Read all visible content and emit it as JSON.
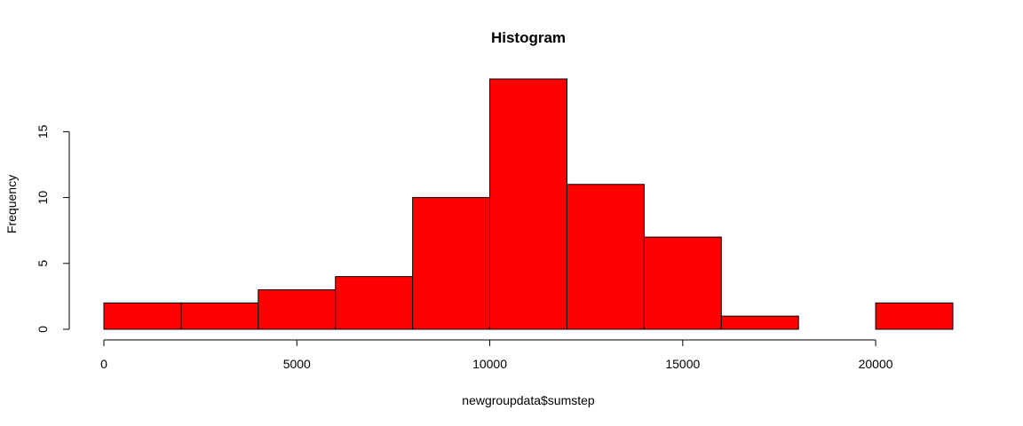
{
  "chart_data": {
    "type": "bar",
    "title": "Histogram",
    "xlabel": "newgroupdata$sumstep",
    "ylabel": "Frequency",
    "bins": [
      {
        "x0": 0,
        "x1": 2000,
        "count": 2
      },
      {
        "x0": 2000,
        "x1": 4000,
        "count": 2
      },
      {
        "x0": 4000,
        "x1": 6000,
        "count": 3
      },
      {
        "x0": 6000,
        "x1": 8000,
        "count": 4
      },
      {
        "x0": 8000,
        "x1": 10000,
        "count": 10
      },
      {
        "x0": 10000,
        "x1": 12000,
        "count": 19
      },
      {
        "x0": 12000,
        "x1": 14000,
        "count": 11
      },
      {
        "x0": 14000,
        "x1": 16000,
        "count": 7
      },
      {
        "x0": 16000,
        "x1": 18000,
        "count": 1
      },
      {
        "x0": 18000,
        "x1": 20000,
        "count": 0
      },
      {
        "x0": 20000,
        "x1": 22000,
        "count": 2
      }
    ],
    "x_ticks": [
      0,
      5000,
      10000,
      15000,
      20000
    ],
    "y_ticks": [
      0,
      5,
      10,
      15
    ],
    "xlim": [
      0,
      22000
    ],
    "ylim": [
      0,
      19
    ],
    "bar_color": "#fe0000",
    "grid": false,
    "legend": "none"
  }
}
